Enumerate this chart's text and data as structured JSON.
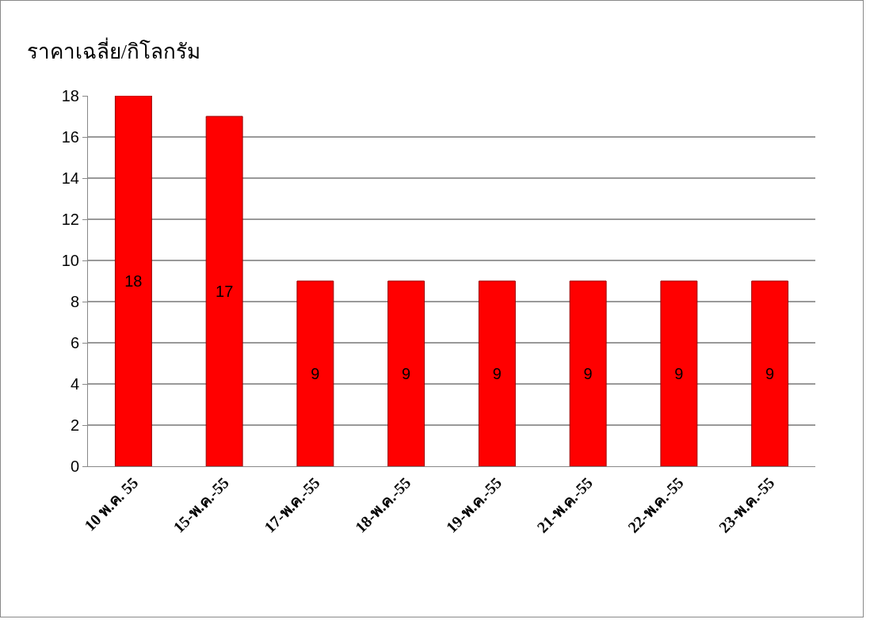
{
  "chart_data": {
    "type": "bar",
    "title": "ราคาเฉลี่ย/กิโลกรัม",
    "categories": [
      "10 พ.ค. 55",
      "15-พ.ค.-55",
      "17-พ.ค.-55",
      "18-พ.ค.-55",
      "19-พ.ค.-55",
      "21-พ.ค.-55",
      "22-พ.ค.-55",
      "23-พ.ค.-55"
    ],
    "values": [
      18,
      17,
      9,
      9,
      9,
      9,
      9,
      9
    ],
    "color": "#ff0000",
    "ylim": [
      0,
      18
    ],
    "yticks": [
      0,
      2,
      4,
      6,
      8,
      10,
      12,
      14,
      16,
      18
    ],
    "grid": "y",
    "data_labels": true
  }
}
